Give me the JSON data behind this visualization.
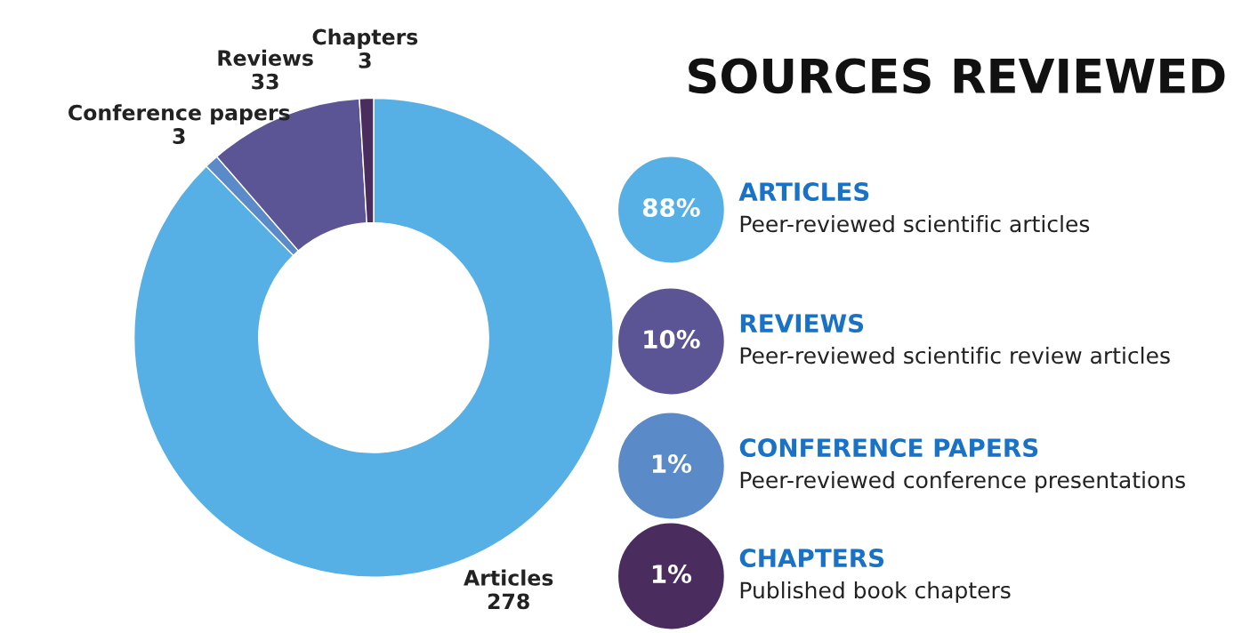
{
  "chart_data": [
    {
      "type": "donut",
      "categories": [
        "Articles",
        "Conference papers",
        "Reviews",
        "Chapters"
      ],
      "values": [
        278,
        3,
        33,
        3
      ],
      "colors": [
        "#57b0e5",
        "#5b8ac8",
        "#5c5595",
        "#4b2c5f"
      ],
      "data_labels": true
    },
    {
      "type": "other",
      "title": "SOURCES REVIEWED",
      "colors": [
        "#57b0e5",
        "#5c5595",
        "#5b8ac8",
        "#4b2c5f"
      ],
      "annotations": [
        "88%",
        "ARTICLES",
        "Peer-reviewed scientific articles",
        "10%",
        "REVIEWS",
        "Peer-reviewed scientific review articles",
        "1%",
        "CONFERENCE PAPERS",
        "Peer-reviewed conference presentations",
        "1%",
        "CHAPTERS",
        "Published book chapters"
      ]
    }
  ]
}
